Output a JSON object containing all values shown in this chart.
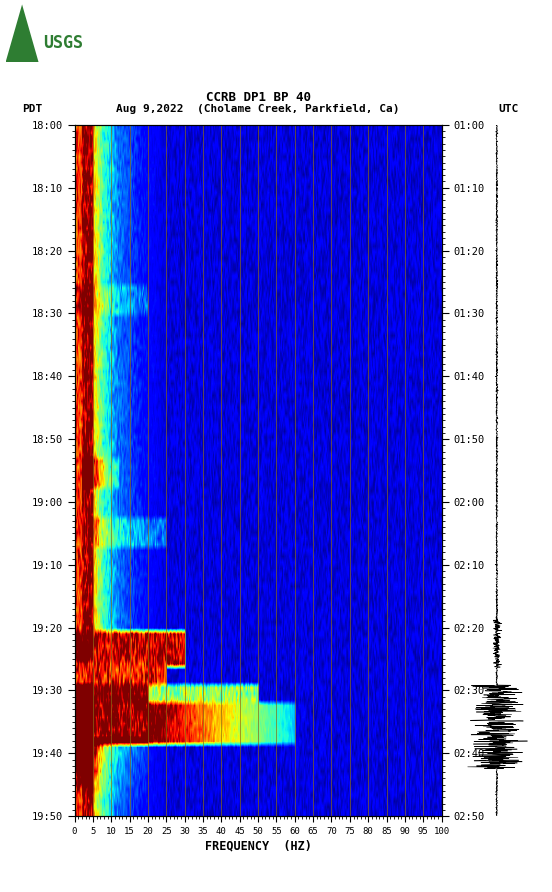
{
  "title_line1": "CCRB DP1 BP 40",
  "title_line2": "PDT  Aug 9,2022  (Cholame Creek, Parkfield, Ca)         UTC",
  "xlabel": "FREQUENCY  (HZ)",
  "freq_min": 0,
  "freq_max": 100,
  "freq_ticks": [
    0,
    5,
    10,
    15,
    20,
    25,
    30,
    35,
    40,
    45,
    50,
    55,
    60,
    65,
    70,
    75,
    80,
    85,
    90,
    95,
    100
  ],
  "pdt_yticks": [
    "18:00",
    "18:10",
    "18:20",
    "18:30",
    "18:40",
    "18:50",
    "19:00",
    "19:10",
    "19:20",
    "19:30",
    "19:40",
    "19:50"
  ],
  "utc_yticks": [
    "01:00",
    "01:10",
    "01:20",
    "01:30",
    "01:40",
    "01:50",
    "02:00",
    "02:10",
    "02:20",
    "02:30",
    "02:40",
    "02:50"
  ],
  "vertical_line_color": "#8B6914",
  "num_time_rows": 116,
  "num_freq_cols": 400,
  "usgs_color": "#2E7D32"
}
